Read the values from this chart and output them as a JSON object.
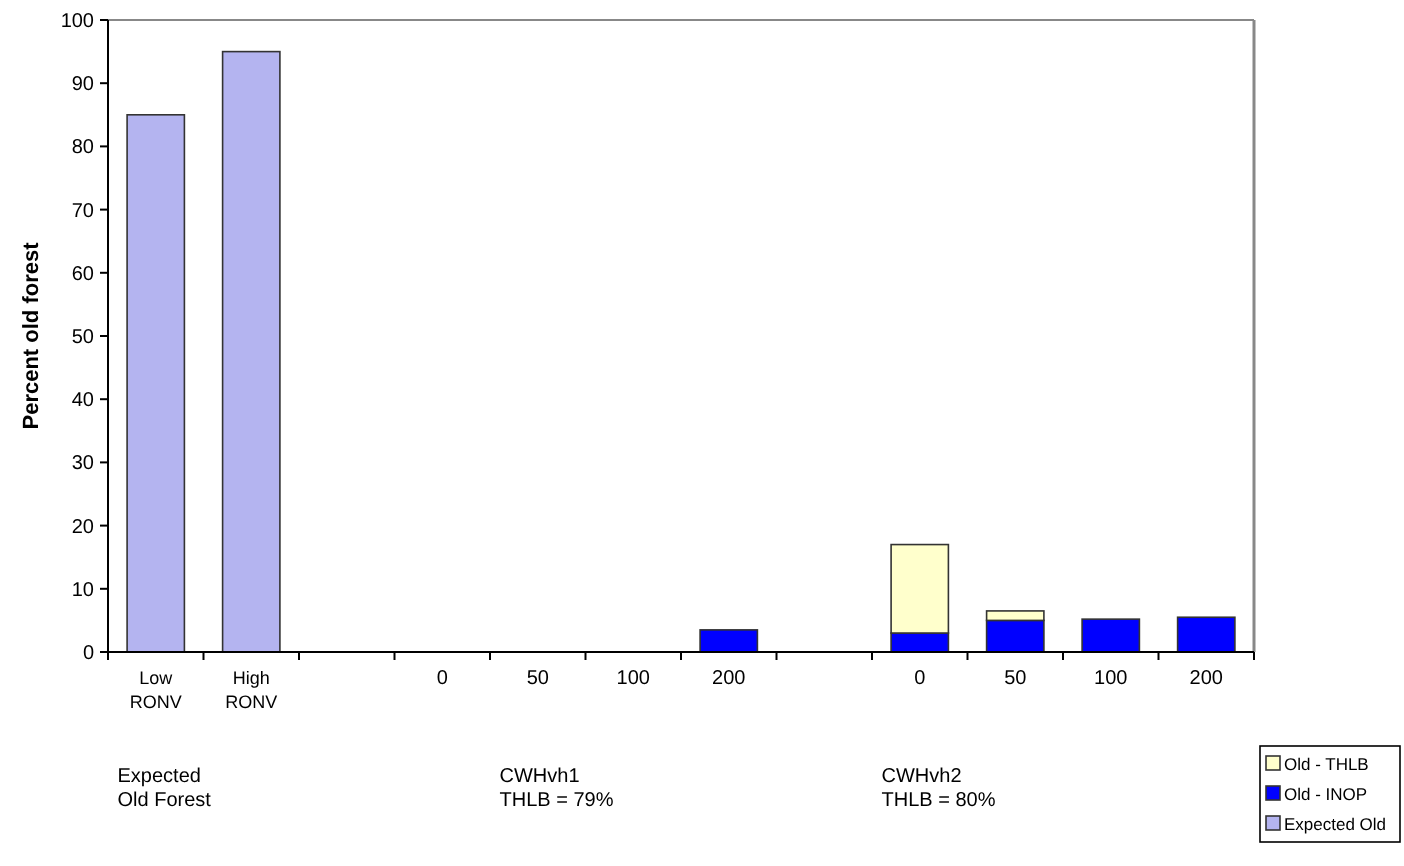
{
  "chart_data": {
    "type": "bar",
    "stacked": true,
    "ylabel": "Percent old forest",
    "categories": [
      "Low RONV",
      "High RONV",
      null,
      "0",
      "50",
      "100",
      "200",
      null,
      "0",
      "50",
      "100",
      "200"
    ],
    "series": [
      {
        "name": "Expected Old",
        "color": "#b4b4f0",
        "values": [
          85,
          95,
          null,
          null,
          null,
          null,
          null,
          null,
          null,
          null,
          null,
          null
        ]
      },
      {
        "name": "Old - INOP",
        "color": "#0000ff",
        "values": [
          null,
          null,
          null,
          null,
          null,
          null,
          3.5,
          null,
          3,
          5,
          5.2,
          5.5
        ]
      },
      {
        "name": "Old - THLB",
        "color": "#ffffcc",
        "values": [
          null,
          null,
          null,
          null,
          null,
          null,
          null,
          null,
          14,
          1.5,
          null,
          null
        ]
      }
    ],
    "ylim": [
      0,
      100
    ],
    "yticks": [
      0,
      10,
      20,
      30,
      40,
      50,
      60,
      70,
      80,
      90,
      100
    ],
    "grid": false,
    "legend": "bottom right",
    "annotations": [
      "Expected Old Forest",
      "CWHvh1 THLB = 79%",
      "CWHvh2 THLB = 80%"
    ]
  }
}
